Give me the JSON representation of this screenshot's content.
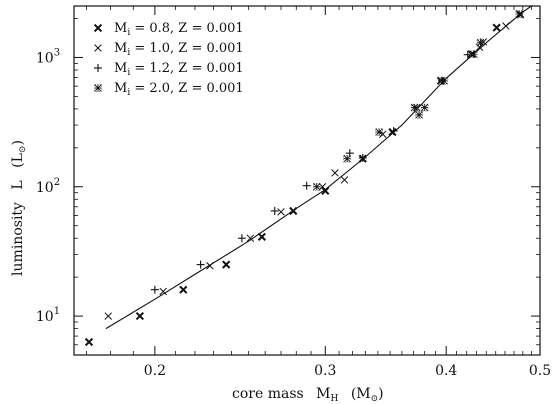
{
  "chart_data": {
    "type": "scatter",
    "xlabel": "core mass",
    "xlabel_symbol": "M",
    "xlabel_symbol_sub": "H",
    "xlabel_unit": "(M",
    "xlabel_unit_sub": "⊙",
    "xlabel_unit_close": ")",
    "ylabel": "luminosity",
    "ylabel_symbol": "L",
    "ylabel_unit": "(L",
    "ylabel_unit_sub": "⊙",
    "ylabel_unit_close": ")",
    "xscale": "log",
    "yscale": "log",
    "xlim": [
      0.165,
      0.5
    ],
    "ylim": [
      5,
      2500
    ],
    "grid": false,
    "legend_position": "top-left",
    "x_ticks": [
      {
        "value": 0.2,
        "label": "0.2"
      },
      {
        "value": 0.3,
        "label": "0.3"
      },
      {
        "value": 0.4,
        "label": "0.4"
      },
      {
        "value": 0.5,
        "label": "0.5"
      }
    ],
    "y_ticks": [
      {
        "value": 10,
        "base": "10",
        "exp": "1"
      },
      {
        "value": 100,
        "base": "10",
        "exp": "2"
      },
      {
        "value": 1000,
        "base": "10",
        "exp": "3"
      }
    ],
    "series": [
      {
        "name": "M_i = 0.8, Z = 0.001",
        "legend": {
          "m": "M",
          "sub": "i",
          "rest": " = 0.8, Z = 0.001"
        },
        "marker": "x-bold",
        "points": [
          [
            0.171,
            6.3
          ],
          [
            0.193,
            10
          ],
          [
            0.214,
            16
          ],
          [
            0.237,
            25
          ],
          [
            0.258,
            41
          ],
          [
            0.278,
            65
          ],
          [
            0.3,
            93
          ],
          [
            0.328,
            165
          ],
          [
            0.352,
            265
          ],
          [
            0.395,
            660
          ],
          [
            0.425,
            1060
          ],
          [
            0.451,
            1700
          ],
          [
            0.477,
            2150
          ]
        ]
      },
      {
        "name": "M_i = 1.0, Z = 0.001",
        "legend": {
          "m": "M",
          "sub": "i",
          "rest": " = 1.0, Z = 0.001"
        },
        "marker": "x",
        "points": [
          [
            0.179,
            10
          ],
          [
            0.204,
            15.5
          ],
          [
            0.228,
            24.5
          ],
          [
            0.251,
            40
          ],
          [
            0.27,
            64
          ],
          [
            0.298,
            100
          ],
          [
            0.307,
            128
          ],
          [
            0.314,
            113
          ],
          [
            0.344,
            255
          ],
          [
            0.373,
            410
          ],
          [
            0.433,
            1200
          ],
          [
            0.437,
            1320
          ],
          [
            0.461,
            1750
          ]
        ]
      },
      {
        "name": "M_i = 1.2, Z = 0.001",
        "legend": {
          "m": "M",
          "sub": "i",
          "rest": " = 1.2, Z = 0.001"
        },
        "marker": "plus",
        "points": [
          [
            0.2,
            16
          ],
          [
            0.223,
            25
          ],
          [
            0.246,
            40
          ],
          [
            0.266,
            65
          ],
          [
            0.287,
            102
          ],
          [
            0.318,
            182
          ],
          [
            0.328,
            167
          ],
          [
            0.353,
            270
          ],
          [
            0.396,
            660
          ],
          [
            0.421,
            1050
          ]
        ]
      },
      {
        "name": "M_i = 2.0, Z = 0.001",
        "legend": {
          "m": "M",
          "sub": "i",
          "rest": " = 2.0, Z = 0.001"
        },
        "marker": "star",
        "points": [
          [
            0.294,
            100
          ],
          [
            0.316,
            165
          ],
          [
            0.341,
            265
          ],
          [
            0.371,
            410
          ],
          [
            0.375,
            360
          ],
          [
            0.38,
            410
          ],
          [
            0.398,
            660
          ],
          [
            0.427,
            1060
          ],
          [
            0.434,
            1300
          ],
          [
            0.476,
            2170
          ]
        ]
      }
    ],
    "fit_line": [
      [
        0.178,
        8
      ],
      [
        0.2,
        13.5
      ],
      [
        0.22,
        21
      ],
      [
        0.25,
        38
      ],
      [
        0.28,
        68
      ],
      [
        0.3,
        95
      ],
      [
        0.33,
        170
      ],
      [
        0.36,
        300
      ],
      [
        0.4,
        690
      ],
      [
        0.44,
        1300
      ],
      [
        0.48,
        2250
      ],
      [
        0.49,
        2500
      ]
    ]
  }
}
